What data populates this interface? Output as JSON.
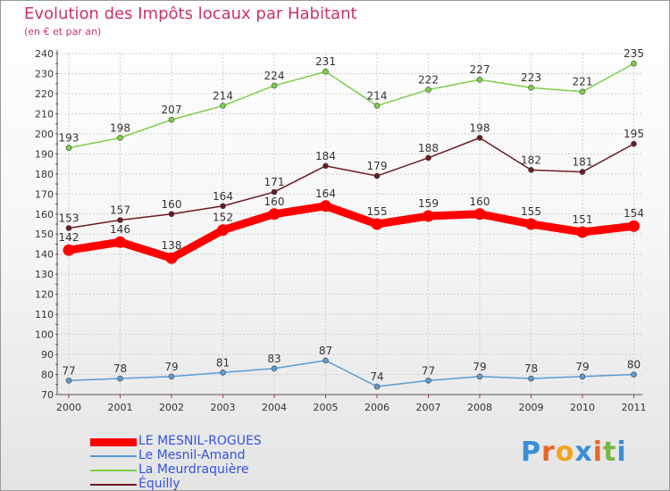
{
  "header": {
    "title": "Evolution des Impôts locaux par Habitant",
    "subtitle": "(en € et par an)"
  },
  "logo": {
    "letters": [
      "P",
      "r",
      "o",
      "x",
      "i",
      "t",
      "i"
    ],
    "colors": [
      "#3a8fd6",
      "#e8652a",
      "#f2a51a",
      "#3a8fd6",
      "#e8652a",
      "#74b943",
      "#3a8fd6"
    ]
  },
  "chart_data": {
    "type": "line",
    "x": [
      "2000",
      "2001",
      "2002",
      "2003",
      "2004",
      "2005",
      "2006",
      "2007",
      "2008",
      "2009",
      "2010",
      "2011"
    ],
    "ylim": [
      70,
      240
    ],
    "yticks": [
      70,
      80,
      90,
      100,
      110,
      120,
      130,
      140,
      150,
      160,
      170,
      180,
      190,
      200,
      210,
      220,
      230,
      240
    ],
    "grid": true,
    "legend_position": "bottom-left",
    "series": [
      {
        "name": "LE MESNIL-ROGUES",
        "color": "#ff0000",
        "emphasis": "thick",
        "values": [
          142,
          146,
          138,
          152,
          160,
          164,
          155,
          159,
          160,
          155,
          151,
          154
        ]
      },
      {
        "name": "Le Mesnil-Amand",
        "color": "#5b9bd5",
        "emphasis": "normal",
        "values": [
          77,
          78,
          79,
          81,
          83,
          87,
          74,
          77,
          79,
          78,
          79,
          80
        ]
      },
      {
        "name": "La Meurdraquière",
        "color": "#7ccf4a",
        "emphasis": "normal",
        "values": [
          193,
          198,
          207,
          214,
          224,
          231,
          214,
          222,
          227,
          223,
          221,
          235
        ]
      },
      {
        "name": "Équilly",
        "color": "#6b1a22",
        "emphasis": "normal",
        "values": [
          153,
          157,
          160,
          164,
          171,
          184,
          179,
          188,
          198,
          182,
          181,
          195
        ]
      }
    ]
  }
}
